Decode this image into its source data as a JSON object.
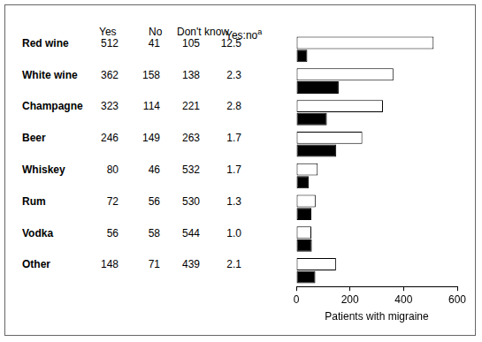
{
  "chart_data": {
    "type": "bar",
    "orientation": "horizontal",
    "categories": [
      "Red wine",
      "White wine",
      "Champagne",
      "Beer",
      "Whiskey",
      "Rum",
      "Vodka",
      "Other"
    ],
    "series": [
      {
        "name": "Yes",
        "color": "#ffffff",
        "values": [
          512,
          362,
          323,
          246,
          80,
          72,
          56,
          148
        ]
      },
      {
        "name": "No",
        "color": "#000000",
        "values": [
          41,
          158,
          114,
          149,
          46,
          56,
          58,
          71
        ]
      }
    ],
    "extra_columns": [
      {
        "name": "Don't know",
        "values": [
          105,
          138,
          221,
          263,
          532,
          530,
          544,
          439
        ]
      },
      {
        "name": "Yes:no",
        "footnote": "a",
        "values": [
          12.5,
          2.3,
          2.8,
          1.7,
          1.7,
          1.3,
          1.0,
          2.1
        ]
      }
    ],
    "x_label": "Patients with migraine",
    "xlim": [
      0,
      600
    ],
    "xticks": [
      0,
      200,
      400,
      600
    ],
    "grid": false,
    "tick_labels": "x"
  }
}
